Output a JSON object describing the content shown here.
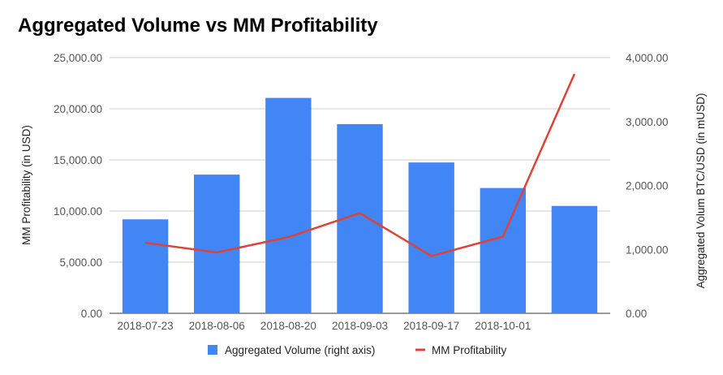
{
  "chart_data": {
    "type": "bar",
    "title": "Aggregated Volume vs MM Profitability",
    "categories": [
      "2018-07-23",
      "2018-08-06",
      "2018-08-20",
      "2018-09-03",
      "2018-09-17",
      "2018-10-01",
      ""
    ],
    "series": [
      {
        "name": "Aggregated Volume (right axis)",
        "type": "bar",
        "axis": "right",
        "color": "#4285f4",
        "values": [
          1470,
          2170,
          3370,
          2960,
          2360,
          1960,
          1680
        ]
      },
      {
        "name": "MM Profitability",
        "type": "line",
        "axis": "left",
        "color": "#db4437",
        "values": [
          6900,
          5950,
          7450,
          9800,
          5600,
          7500,
          23400
        ]
      }
    ],
    "y_left": {
      "label": "MM Profitability (in USD)",
      "range": [
        0,
        25000
      ],
      "ticks": [
        "0.00",
        "5,000.00",
        "10,000.00",
        "15,000.00",
        "20,000.00",
        "25,000.00"
      ]
    },
    "y_right": {
      "label": "Aggregated Volum BTC/USD (in mUSD)",
      "range": [
        0,
        4000
      ],
      "ticks": [
        "0.00",
        "1,000.00",
        "2,000.00",
        "3,000.00",
        "4,000.00"
      ]
    },
    "grid": true,
    "legend_position": "bottom"
  }
}
